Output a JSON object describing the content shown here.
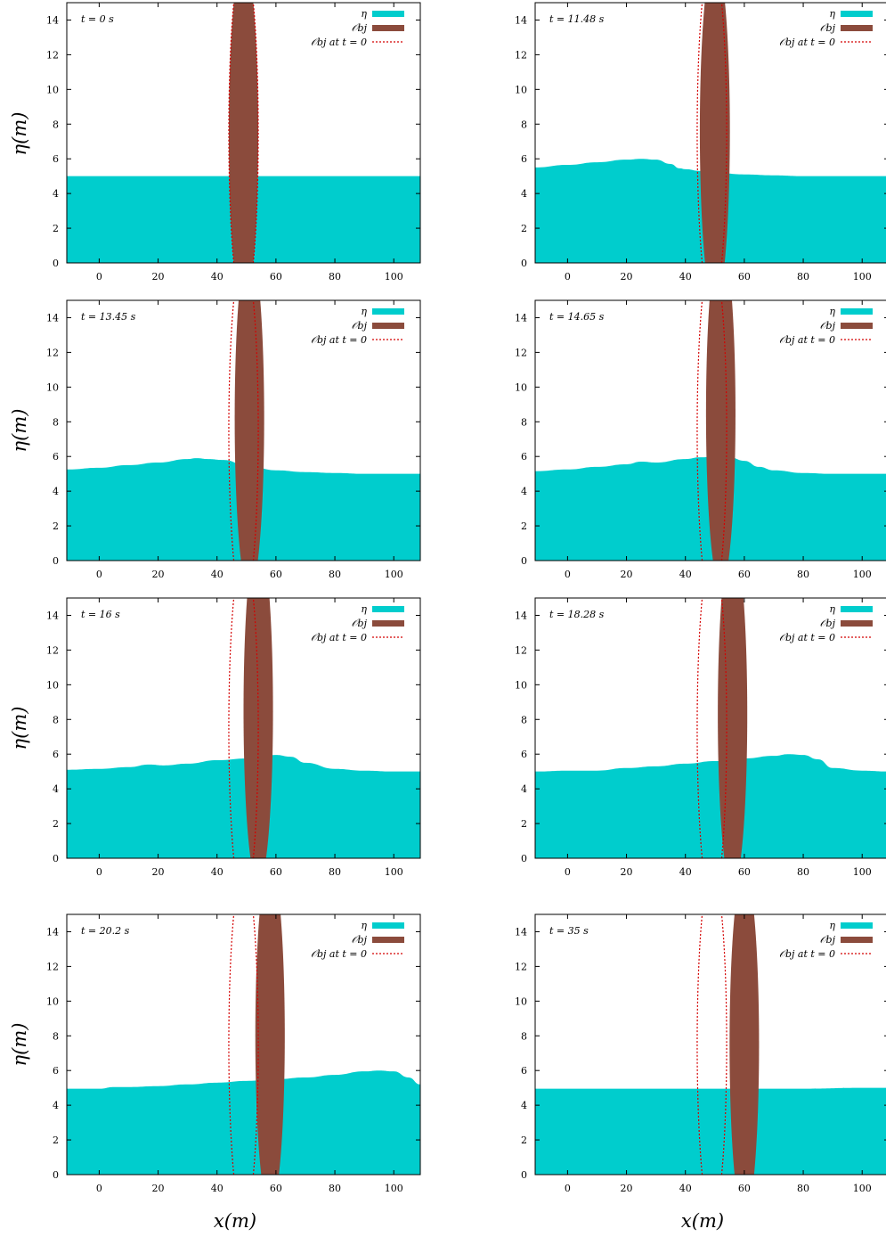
{
  "figure": {
    "xlabel": "x(m)",
    "ylabel": "η(m)"
  },
  "legend": {
    "entries": [
      {
        "label": "η",
        "color": "#00cdcd",
        "style": "filled"
      },
      {
        "label": "𝒪bj",
        "color": "#8b4b3c",
        "style": "filled"
      },
      {
        "label": "𝒪bj at t = 0",
        "color": "#d40000",
        "style": "dotted"
      }
    ]
  },
  "colors": {
    "water": "#00cdcd",
    "body": "#8b4b3c",
    "initial_outline": "#d40000"
  },
  "chart_data": [
    {
      "type": "area",
      "time_label": "t = 0 s",
      "xlim": [
        -11,
        109
      ],
      "ylim": [
        0,
        15
      ],
      "xticks": [
        0,
        20,
        40,
        60,
        80,
        100
      ],
      "yticks": [
        0,
        2,
        4,
        6,
        8,
        10,
        12,
        14
      ],
      "surface": {
        "x": [
          -11,
          20,
          40,
          60,
          80,
          109
        ],
        "y": [
          5.0,
          5.0,
          5.0,
          5.0,
          5.0,
          5.0
        ]
      },
      "body": {
        "center": [
          49,
          7.5
        ],
        "semi_axes": [
          10,
          5
        ]
      },
      "initial_body": {
        "center": [
          49,
          7.5
        ],
        "semi_axes": [
          10,
          5
        ]
      }
    },
    {
      "type": "area",
      "time_label": "t = 11.48 s",
      "xlim": [
        -11,
        109
      ],
      "ylim": [
        0,
        15
      ],
      "xticks": [
        0,
        20,
        40,
        60,
        80,
        100
      ],
      "yticks": [
        0,
        2,
        4,
        6,
        8,
        10,
        12,
        14
      ],
      "surface": {
        "x": [
          -11,
          0,
          10,
          20,
          25,
          30,
          35,
          38,
          40,
          45,
          50,
          60,
          70,
          80,
          90,
          100,
          109
        ],
        "y": [
          5.5,
          5.65,
          5.8,
          5.95,
          6.0,
          5.95,
          5.7,
          5.45,
          5.4,
          5.3,
          5.2,
          5.1,
          5.05,
          5.0,
          5.0,
          5.0,
          5.0
        ]
      },
      "body": {
        "center": [
          50,
          7.6
        ],
        "semi_axes": [
          10,
          5.1
        ]
      },
      "initial_body": {
        "center": [
          49,
          7.5
        ],
        "semi_axes": [
          10,
          5
        ]
      }
    },
    {
      "type": "area",
      "time_label": "t = 13.45 s",
      "xlim": [
        -11,
        109
      ],
      "ylim": [
        0,
        15
      ],
      "xticks": [
        0,
        20,
        40,
        60,
        80,
        100
      ],
      "yticks": [
        0,
        2,
        4,
        6,
        8,
        10,
        12,
        14
      ],
      "surface": {
        "x": [
          -11,
          0,
          10,
          20,
          30,
          33,
          37,
          42,
          50,
          60,
          70,
          80,
          90,
          100,
          109
        ],
        "y": [
          5.25,
          5.35,
          5.5,
          5.65,
          5.85,
          5.9,
          5.85,
          5.8,
          5.5,
          5.2,
          5.1,
          5.05,
          5.0,
          5.0,
          5.0
        ]
      },
      "body": {
        "center": [
          51,
          8.2
        ],
        "semi_axes": [
          10,
          5
        ]
      },
      "initial_body": {
        "center": [
          49,
          7.5
        ],
        "semi_axes": [
          10,
          5
        ]
      }
    },
    {
      "type": "area",
      "time_label": "t = 14.65 s",
      "xlim": [
        -11,
        109
      ],
      "ylim": [
        0,
        15
      ],
      "xticks": [
        0,
        20,
        40,
        60,
        80,
        100
      ],
      "yticks": [
        0,
        2,
        4,
        6,
        8,
        10,
        12,
        14
      ],
      "surface": {
        "x": [
          -11,
          0,
          10,
          20,
          25,
          30,
          40,
          45,
          50,
          55,
          60,
          65,
          70,
          80,
          90,
          100,
          109
        ],
        "y": [
          5.15,
          5.25,
          5.4,
          5.55,
          5.7,
          5.65,
          5.85,
          5.95,
          6.0,
          5.95,
          5.75,
          5.4,
          5.2,
          5.05,
          5.0,
          5.0,
          5.0
        ]
      },
      "body": {
        "center": [
          52,
          8.5
        ],
        "semi_axes": [
          10,
          5
        ]
      },
      "initial_body": {
        "center": [
          49,
          7.5
        ],
        "semi_axes": [
          10,
          5
        ]
      }
    },
    {
      "type": "area",
      "time_label": "t = 16 s",
      "xlim": [
        -11,
        109
      ],
      "ylim": [
        0,
        15
      ],
      "xticks": [
        0,
        20,
        40,
        60,
        80,
        100
      ],
      "yticks": [
        0,
        2,
        4,
        6,
        8,
        10,
        12,
        14
      ],
      "surface": {
        "x": [
          -11,
          0,
          10,
          17,
          22,
          30,
          40,
          50,
          55,
          60,
          65,
          70,
          80,
          90,
          100,
          109
        ],
        "y": [
          5.1,
          5.15,
          5.25,
          5.4,
          5.35,
          5.45,
          5.65,
          5.75,
          5.85,
          5.95,
          5.85,
          5.5,
          5.15,
          5.05,
          5.0,
          5.0
        ]
      },
      "body": {
        "center": [
          54,
          8.5
        ],
        "semi_axes": [
          10,
          5
        ]
      },
      "initial_body": {
        "center": [
          49,
          7.5
        ],
        "semi_axes": [
          10,
          5
        ]
      }
    },
    {
      "type": "area",
      "time_label": "t = 18.28 s",
      "xlim": [
        -11,
        109
      ],
      "ylim": [
        0,
        15
      ],
      "xticks": [
        0,
        20,
        40,
        60,
        80,
        100
      ],
      "yticks": [
        0,
        2,
        4,
        6,
        8,
        10,
        12,
        14
      ],
      "surface": {
        "x": [
          -11,
          0,
          10,
          20,
          30,
          40,
          50,
          60,
          70,
          75,
          80,
          85,
          90,
          100,
          109
        ],
        "y": [
          5.0,
          5.05,
          5.05,
          5.2,
          5.3,
          5.45,
          5.6,
          5.75,
          5.9,
          6.0,
          5.95,
          5.7,
          5.2,
          5.05,
          5.0
        ]
      },
      "body": {
        "center": [
          56,
          8.3
        ],
        "semi_axes": [
          10,
          5
        ]
      },
      "initial_body": {
        "center": [
          49,
          7.5
        ],
        "semi_axes": [
          10,
          5
        ]
      }
    },
    {
      "type": "area",
      "time_label": "t = 20.2 s",
      "xlim": [
        -11,
        109
      ],
      "ylim": [
        0,
        15
      ],
      "xticks": [
        0,
        20,
        40,
        60,
        80,
        100
      ],
      "yticks": [
        0,
        2,
        4,
        6,
        8,
        10,
        12,
        14
      ],
      "surface": {
        "x": [
          -11,
          0,
          5,
          10,
          20,
          30,
          40,
          50,
          60,
          70,
          80,
          90,
          95,
          100,
          105,
          109
        ],
        "y": [
          4.95,
          4.95,
          5.05,
          5.05,
          5.1,
          5.2,
          5.3,
          5.4,
          5.5,
          5.6,
          5.75,
          5.95,
          6.0,
          5.95,
          5.6,
          5.2
        ]
      },
      "body": {
        "center": [
          58,
          8.0
        ],
        "semi_axes": [
          10,
          5
        ]
      },
      "initial_body": {
        "center": [
          49,
          7.5
        ],
        "semi_axes": [
          10,
          5
        ]
      }
    },
    {
      "type": "area",
      "time_label": "t = 35 s",
      "xlim": [
        -11,
        109
      ],
      "ylim": [
        0,
        15
      ],
      "xticks": [
        0,
        20,
        40,
        60,
        80,
        100
      ],
      "yticks": [
        0,
        2,
        4,
        6,
        8,
        10,
        12,
        14
      ],
      "surface": {
        "x": [
          -11,
          20,
          40,
          60,
          80,
          100,
          109
        ],
        "y": [
          4.95,
          4.95,
          4.95,
          4.95,
          4.95,
          5.0,
          5.0
        ]
      },
      "body": {
        "center": [
          60,
          7.5
        ],
        "semi_axes": [
          10,
          5
        ]
      },
      "initial_body": {
        "center": [
          49,
          7.5
        ],
        "semi_axes": [
          10,
          5
        ]
      }
    }
  ]
}
